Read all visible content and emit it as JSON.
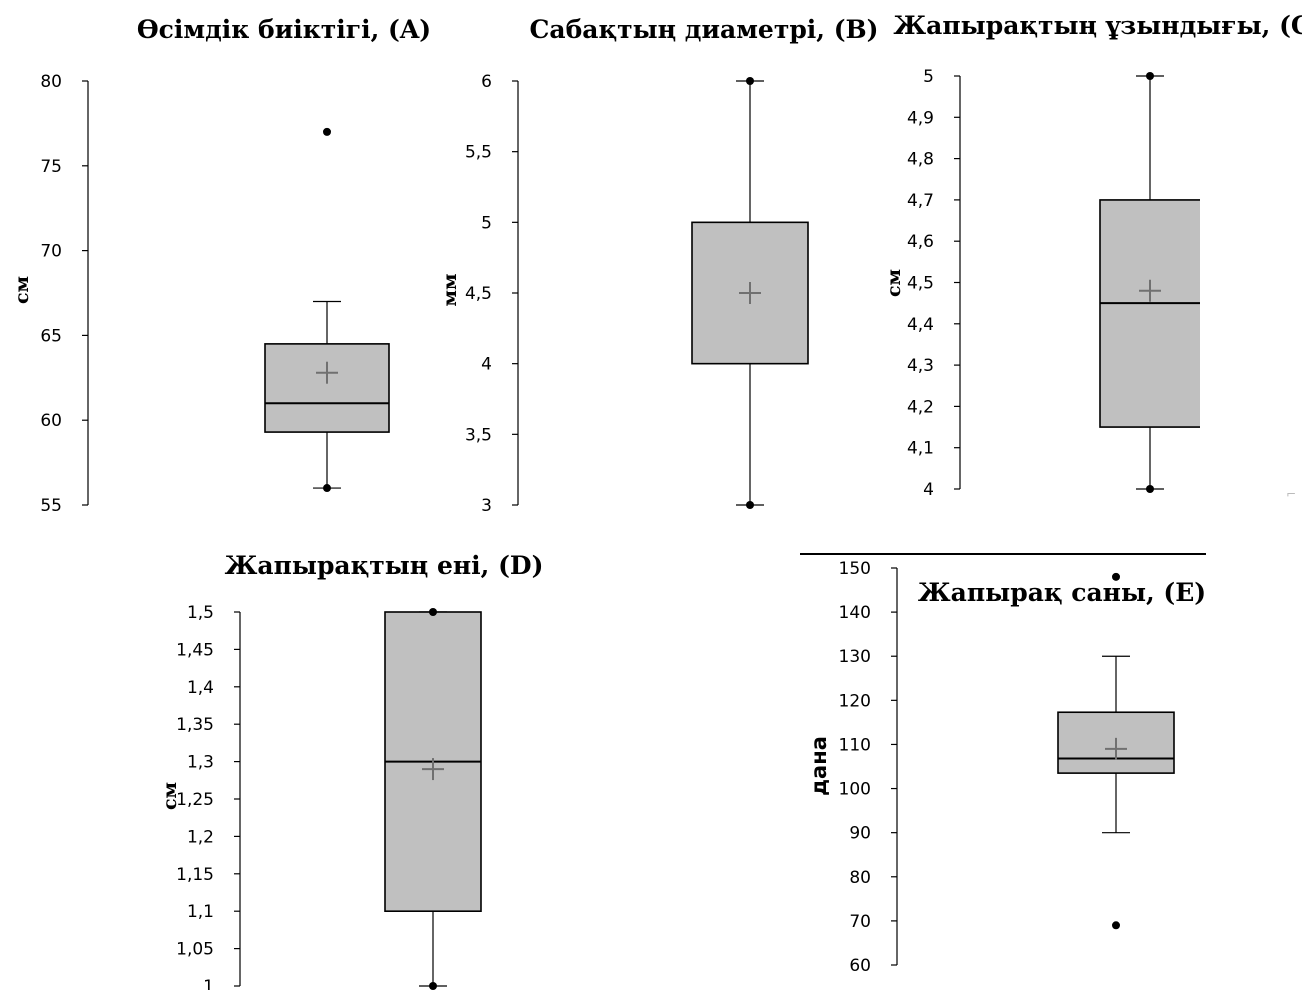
{
  "chart_data": [
    {
      "id": "A",
      "type": "box",
      "title": "Өсімдік биіктігі, (A)",
      "ylabel": "см",
      "ylim": [
        55,
        80
      ],
      "ticks": [
        "55",
        "60",
        "65",
        "70",
        "75",
        "80"
      ],
      "whisker_low": 56,
      "q1": 59.3,
      "median": 61,
      "q3": 64.5,
      "whisker_high": 67,
      "mean": 62.8,
      "points": [
        56,
        77
      ]
    },
    {
      "id": "B",
      "type": "box",
      "title": "Сабақтың диаметрі, (B)",
      "ylabel": "мм",
      "ylim": [
        3,
        6
      ],
      "ticks": [
        "3",
        "3,5",
        "4",
        "4,5",
        "5",
        "5,5",
        "6"
      ],
      "whisker_low": 3,
      "q1": 4,
      "median": null,
      "q3": 5,
      "whisker_high": 6,
      "mean": 4.5,
      "points": [
        3,
        6
      ]
    },
    {
      "id": "C",
      "type": "box",
      "title": "Жапырақтың ұзындығы, (C)",
      "ylabel": "см",
      "ylim": [
        4,
        5
      ],
      "ticks": [
        "4",
        "4,1",
        "4,2",
        "4,3",
        "4,4",
        "4,5",
        "4,6",
        "4,7",
        "4,8",
        "4,9",
        "5"
      ],
      "whisker_low": 4,
      "q1": 4.15,
      "median": 4.45,
      "q3": 4.7,
      "whisker_high": 5,
      "mean": 4.48,
      "points": [
        4,
        5
      ]
    },
    {
      "id": "D",
      "type": "box",
      "title": "Жапырақтың ені, (D)",
      "ylabel": "см",
      "ylim": [
        1,
        1.5
      ],
      "ticks": [
        "1",
        "1,05",
        "1,1",
        "1,15",
        "1,2",
        "1,25",
        "1,3",
        "1,35",
        "1,4",
        "1,45",
        "1,5"
      ],
      "whisker_low": 1,
      "q1": 1.1,
      "median": 1.3,
      "q3": 1.5,
      "whisker_high": 1.5,
      "mean": 1.29,
      "points": [
        1,
        1.5
      ]
    },
    {
      "id": "E",
      "type": "box",
      "title": "Жапырақ саны, (E)",
      "ylabel": "дана",
      "ylim": [
        60,
        150
      ],
      "ticks": [
        "60",
        "70",
        "80",
        "90",
        "100",
        "110",
        "120",
        "130",
        "140",
        "150"
      ],
      "whisker_low": 90,
      "q1": 103.5,
      "median": 106.8,
      "q3": 117.3,
      "whisker_high": 130,
      "mean": 109,
      "points": [
        69,
        148
      ]
    }
  ]
}
